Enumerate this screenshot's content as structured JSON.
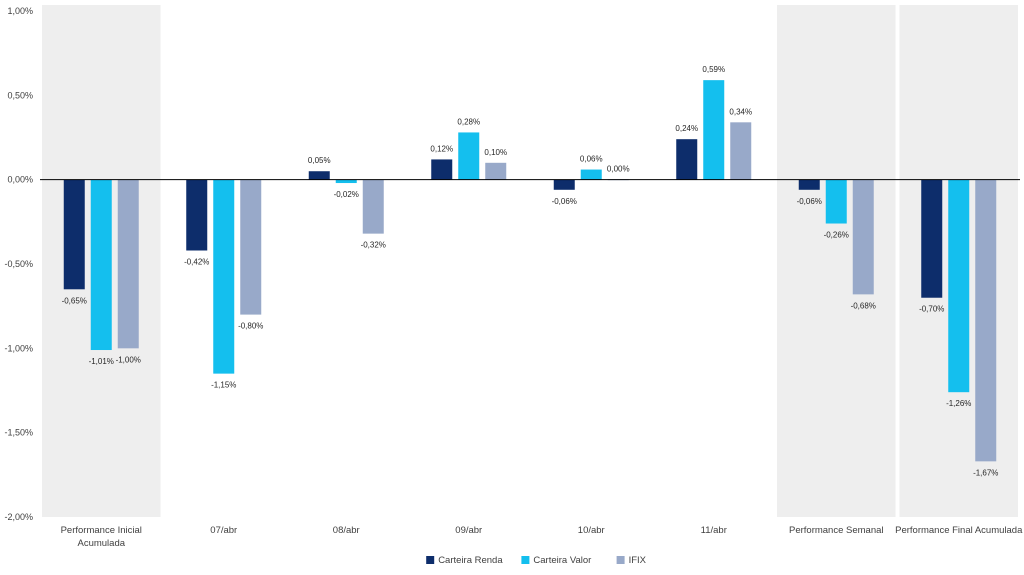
{
  "chart_data": {
    "type": "bar",
    "categories": [
      [
        "Performance Inicial",
        "Acumulada"
      ],
      [
        "07/abr"
      ],
      [
        "08/abr"
      ],
      [
        "09/abr"
      ],
      [
        "10/abr"
      ],
      [
        "11/abr"
      ],
      [
        "Performance Semanal"
      ],
      [
        "Performance Final Acumulada"
      ]
    ],
    "shaded_categories": [
      0,
      6,
      7
    ],
    "series": [
      {
        "name": "Carteira Renda",
        "color": "#0d2d6b",
        "values": [
          -0.65,
          -0.42,
          0.05,
          0.12,
          -0.06,
          0.24,
          -0.06,
          -0.7
        ],
        "labels": [
          "-0,65%",
          "-0,42%",
          "0,05%",
          "0,12%",
          "-0,06%",
          "0,24%",
          "-0,06%",
          "-0,70%"
        ]
      },
      {
        "name": "Carteira Valor",
        "color": "#14bfee",
        "values": [
          -1.01,
          -1.15,
          -0.02,
          0.28,
          0.06,
          0.59,
          -0.26,
          -1.26
        ],
        "labels": [
          "-1,01%",
          "-1,15%",
          "-0,02%",
          "0,28%",
          "0,06%",
          "0,59%",
          "-0,26%",
          "-1,26%"
        ]
      },
      {
        "name": "IFIX",
        "color": "#98a9c9",
        "values": [
          -1.0,
          -0.8,
          -0.32,
          0.1,
          0.0,
          0.34,
          -0.68,
          -1.67
        ],
        "labels": [
          "-1,00%",
          "-0,80%",
          "-0,32%",
          "0,10%",
          "0,00%",
          "0,34%",
          "-0,68%",
          "-1,67%"
        ]
      }
    ],
    "ylim": [
      -2.0,
      1.0
    ],
    "yticks": [
      1.0,
      0.5,
      0.0,
      -0.5,
      -1.0,
      -1.5,
      -2.0
    ],
    "ytick_labels": [
      "1,00%",
      "0,50%",
      "0,00%",
      "-0,50%",
      "-1,00%",
      "-1,50%",
      "-2,00%"
    ],
    "grid": false,
    "legend_position": "bottom"
  }
}
